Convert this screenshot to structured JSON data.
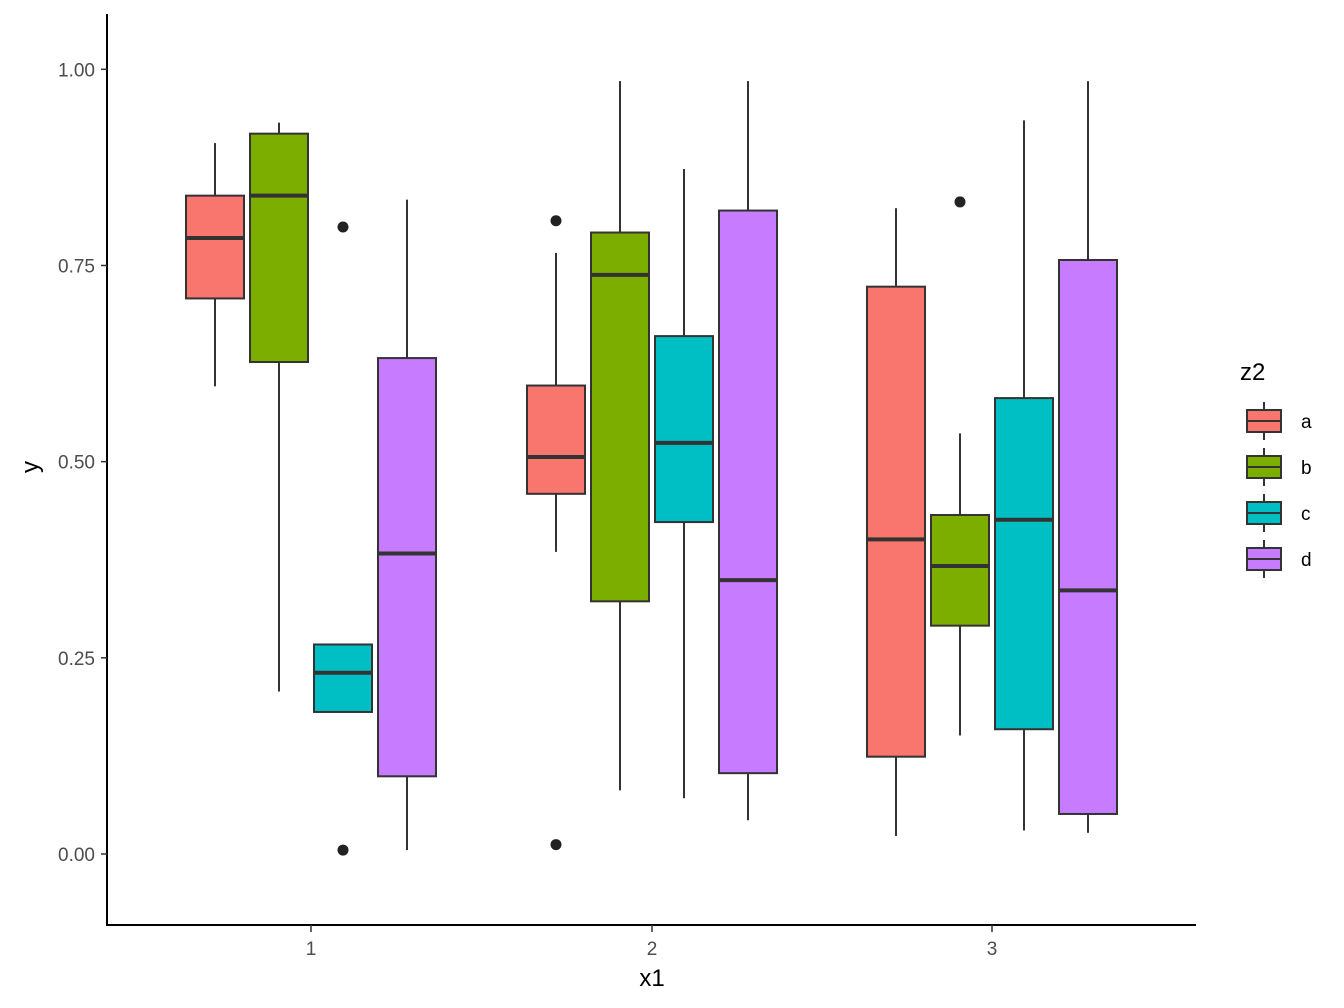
{
  "chart_data": {
    "type": "boxplot",
    "title": "",
    "xlabel": "x1",
    "ylabel": "y",
    "categories": [
      "1",
      "2",
      "3"
    ],
    "ylim": [
      -0.0905,
      1.0705
    ],
    "yticks": [
      0.0,
      0.25,
      0.5,
      0.75,
      1.0
    ],
    "ytick_labels": [
      "0.00",
      "0.25",
      "0.50",
      "0.75",
      "1.00"
    ],
    "grid": false,
    "legend": {
      "title": "z2",
      "position": "right"
    },
    "series": [
      {
        "name": "a",
        "color": "#F8766D",
        "boxes": [
          {
            "category": "1",
            "whisker_low": 0.596,
            "q1": 0.708,
            "median": 0.785,
            "q3": 0.839,
            "whisker_high": 0.906,
            "outliers": []
          },
          {
            "category": "2",
            "whisker_low": 0.385,
            "q1": 0.459,
            "median": 0.506,
            "q3": 0.597,
            "whisker_high": 0.766,
            "outliers": [
              0.807,
              0.012
            ]
          },
          {
            "category": "3",
            "whisker_low": 0.023,
            "q1": 0.124,
            "median": 0.401,
            "q3": 0.723,
            "whisker_high": 0.823,
            "outliers": []
          }
        ]
      },
      {
        "name": "b",
        "color": "#7CAE00",
        "boxes": [
          {
            "category": "1",
            "whisker_low": 0.207,
            "q1": 0.627,
            "median": 0.839,
            "q3": 0.918,
            "whisker_high": 0.932,
            "outliers": []
          },
          {
            "category": "2",
            "whisker_low": 0.081,
            "q1": 0.322,
            "median": 0.738,
            "q3": 0.792,
            "whisker_high": 0.985,
            "outliers": []
          },
          {
            "category": "3",
            "whisker_low": 0.151,
            "q1": 0.291,
            "median": 0.367,
            "q3": 0.432,
            "whisker_high": 0.536,
            "outliers": [
              0.831
            ]
          }
        ]
      },
      {
        "name": "c",
        "color": "#00BFC4",
        "boxes": [
          {
            "category": "1",
            "whisker_low": 0.181,
            "q1": 0.181,
            "median": 0.231,
            "q3": 0.267,
            "whisker_high": 0.267,
            "outliers": [
              0.799,
              0.005
            ]
          },
          {
            "category": "2",
            "whisker_low": 0.071,
            "q1": 0.423,
            "median": 0.524,
            "q3": 0.66,
            "whisker_high": 0.873,
            "outliers": []
          },
          {
            "category": "3",
            "whisker_low": 0.03,
            "q1": 0.159,
            "median": 0.426,
            "q3": 0.581,
            "whisker_high": 0.935,
            "outliers": []
          }
        ]
      },
      {
        "name": "d",
        "color": "#C77CFF",
        "boxes": [
          {
            "category": "1",
            "whisker_low": 0.005,
            "q1": 0.099,
            "median": 0.383,
            "q3": 0.632,
            "whisker_high": 0.834,
            "outliers": []
          },
          {
            "category": "2",
            "whisker_low": 0.043,
            "q1": 0.103,
            "median": 0.349,
            "q3": 0.82,
            "whisker_high": 0.985,
            "outliers": []
          },
          {
            "category": "3",
            "whisker_low": 0.027,
            "q1": 0.051,
            "median": 0.336,
            "q3": 0.757,
            "whisker_high": 0.985,
            "outliers": []
          }
        ]
      }
    ]
  }
}
